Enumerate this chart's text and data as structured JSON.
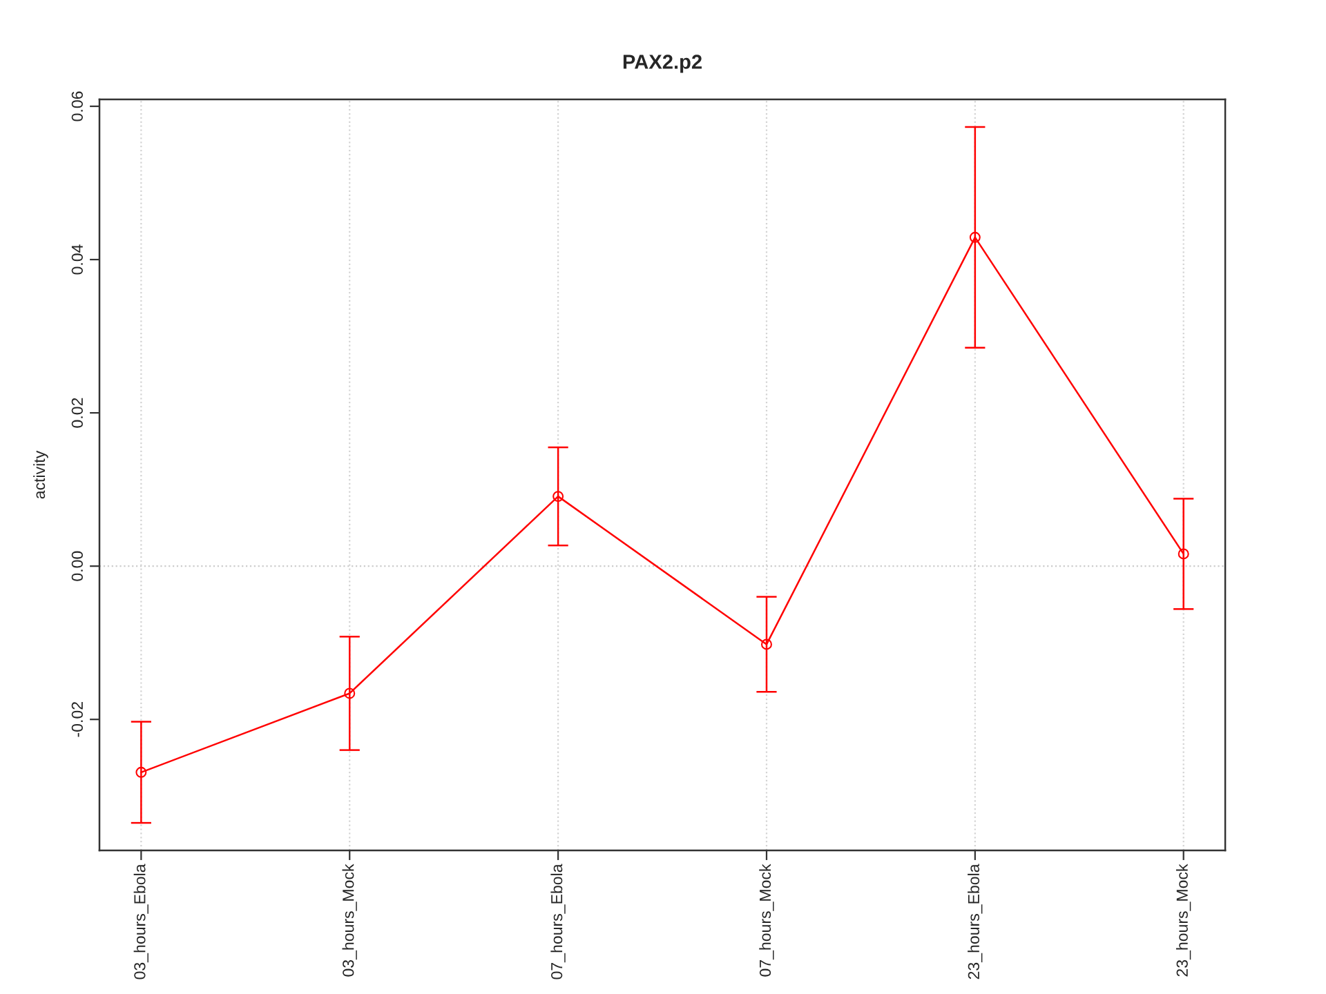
{
  "chart_data": {
    "type": "line",
    "title": "PAX2.p2",
    "ylabel": "activity",
    "categories": [
      "03_hours_Ebola",
      "03_hours_Mock",
      "07_hours_Ebola",
      "07_hours_Mock",
      "23_hours_Ebola",
      "23_hours_Mock"
    ],
    "series": [
      {
        "color": "#ff0000",
        "values": [
          -0.0269,
          -0.0166,
          0.0091,
          -0.0102,
          0.0429,
          0.0016
        ],
        "errors": [
          0.0066,
          0.0074,
          0.0064,
          0.0062,
          0.0144,
          0.0072
        ]
      }
    ],
    "ylim": [
      -0.0371,
      0.0609
    ],
    "yticks": [
      -0.02,
      {
        "value": 0,
        "label": "0.00"
      },
      0.02,
      0.04,
      0.06
    ],
    "ref_lines": [
      {
        "axis": "y",
        "value": 0,
        "color": "#cccccc",
        "line_style": "dotted"
      }
    ],
    "grid": "x",
    "marker": "circle",
    "line_style": "solid"
  }
}
